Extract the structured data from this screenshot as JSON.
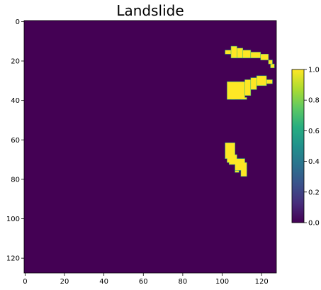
{
  "chart_data": {
    "type": "heatmap",
    "title": "Landslide",
    "xlabel": "",
    "ylabel": "",
    "grid": "128x128",
    "xlim": [
      0,
      127
    ],
    "ylim": [
      127,
      0
    ],
    "xticks": [
      0,
      20,
      40,
      60,
      80,
      100,
      120
    ],
    "yticks": [
      0,
      20,
      40,
      60,
      80,
      100,
      120
    ],
    "colorbar": {
      "range": [
        0.0,
        1.0
      ],
      "ticks": [
        "0.0",
        "0.2",
        "0.4",
        "0.6",
        "0.8",
        "1.0"
      ],
      "colormap": "viridis"
    },
    "background_value": 0,
    "regions": [
      {
        "name": "upper-strip",
        "value": 1,
        "cells": [
          [
            102,
            15,
            3,
            2
          ],
          [
            105,
            13,
            3,
            6
          ],
          [
            108,
            14,
            3,
            5
          ],
          [
            111,
            15,
            4,
            4
          ],
          [
            115,
            16,
            5,
            3
          ],
          [
            120,
            17,
            4,
            3
          ],
          [
            124,
            20,
            2,
            2
          ],
          [
            125,
            22,
            2,
            2
          ]
        ]
      },
      {
        "name": "middle-patch",
        "value": 1,
        "cells": [
          [
            103,
            31,
            9,
            9
          ],
          [
            112,
            30,
            3,
            8
          ],
          [
            115,
            29,
            3,
            6
          ],
          [
            118,
            28,
            5,
            5
          ],
          [
            123,
            30,
            3,
            2
          ],
          [
            105,
            39,
            2,
            1
          ],
          [
            110,
            39,
            3,
            1
          ]
        ]
      },
      {
        "name": "lower-patch",
        "value": 1,
        "cells": [
          [
            102,
            62,
            5,
            8
          ],
          [
            103,
            68,
            5,
            4
          ],
          [
            104,
            70,
            8,
            3
          ],
          [
            107,
            72,
            6,
            4
          ],
          [
            110,
            75,
            3,
            4
          ],
          [
            107,
            76,
            2,
            1
          ]
        ]
      }
    ]
  },
  "colors": {
    "low": "#440154",
    "high": "#fde725",
    "edge": "#35b779"
  }
}
